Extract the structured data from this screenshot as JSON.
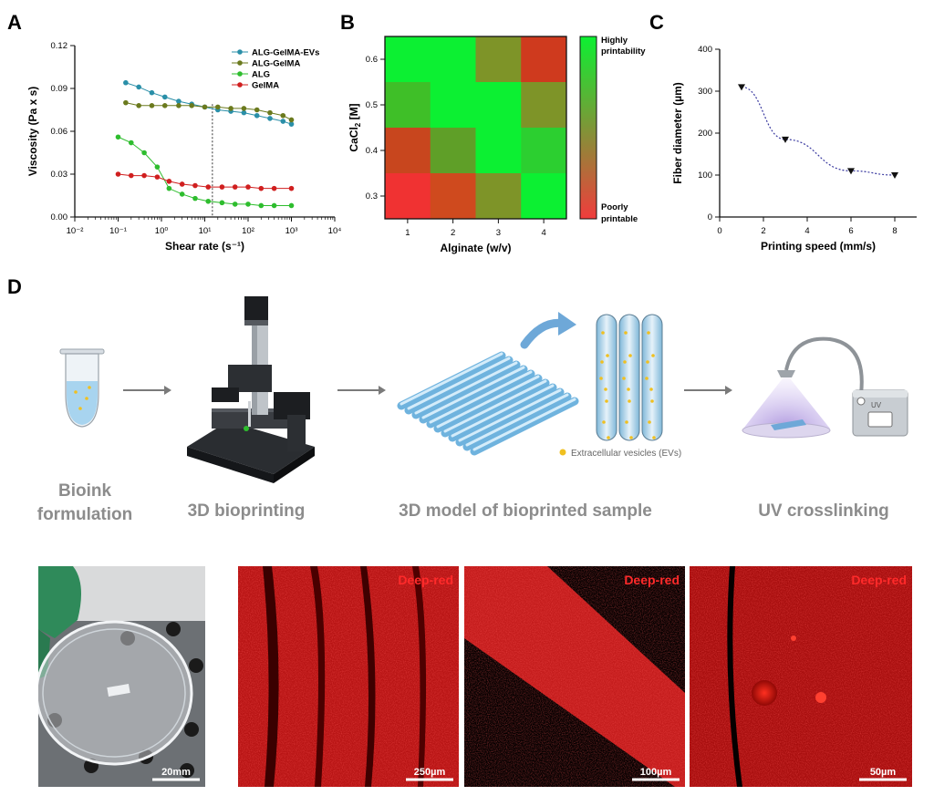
{
  "panels": {
    "a_letter": "A",
    "b_letter": "B",
    "c_letter": "C",
    "d_letter": "D"
  },
  "chart_data": [
    {
      "id": "A",
      "type": "line",
      "xscale": "log",
      "xlabel": "Shear rate (s⁻¹)",
      "ylabel": "Viscosity (Pa x s)",
      "xlim": [
        0.01,
        10000
      ],
      "ylim": [
        0,
        0.12
      ],
      "xticks": [
        0.01,
        0.1,
        1,
        10,
        100,
        1000,
        10000
      ],
      "xtick_labels": [
        "10⁻²",
        "10⁻¹",
        "10⁰",
        "10¹",
        "10²",
        "10³",
        "10⁴"
      ],
      "yticks": [
        0,
        0.03,
        0.06,
        0.09,
        0.12
      ],
      "ytick_labels": [
        "0.00",
        "0.03",
        "0.06",
        "0.09",
        "0.12"
      ],
      "reference_line_x": 15,
      "legend_position": "top-right",
      "series": [
        {
          "name": "ALG-GelMA-EVs",
          "color": "#2a8fa8",
          "marker": "circle",
          "x": [
            0.15,
            0.3,
            0.6,
            1.2,
            2.5,
            5,
            10,
            20,
            40,
            80,
            160,
            320,
            640,
            1000
          ],
          "y": [
            0.094,
            0.091,
            0.087,
            0.084,
            0.081,
            0.079,
            0.077,
            0.075,
            0.074,
            0.073,
            0.071,
            0.069,
            0.067,
            0.065
          ]
        },
        {
          "name": "ALG-GelMA",
          "color": "#6b7a1e",
          "marker": "circle",
          "x": [
            0.15,
            0.3,
            0.6,
            1.2,
            2.5,
            5,
            10,
            20,
            40,
            80,
            160,
            320,
            640,
            1000
          ],
          "y": [
            0.08,
            0.078,
            0.078,
            0.078,
            0.078,
            0.078,
            0.077,
            0.077,
            0.076,
            0.076,
            0.075,
            0.073,
            0.071,
            0.068
          ]
        },
        {
          "name": "ALG",
          "color": "#2ebd2e",
          "marker": "circle",
          "x": [
            0.1,
            0.2,
            0.4,
            0.8,
            1.5,
            3,
            6,
            12,
            25,
            50,
            100,
            200,
            400,
            1000
          ],
          "y": [
            0.056,
            0.052,
            0.045,
            0.035,
            0.02,
            0.016,
            0.013,
            0.011,
            0.01,
            0.009,
            0.009,
            0.008,
            0.008,
            0.008
          ]
        },
        {
          "name": "GelMA",
          "color": "#d01f1f",
          "marker": "circle",
          "x": [
            0.1,
            0.2,
            0.4,
            0.8,
            1.5,
            3,
            6,
            12,
            25,
            50,
            100,
            200,
            400,
            1000
          ],
          "y": [
            0.03,
            0.029,
            0.029,
            0.028,
            0.025,
            0.023,
            0.022,
            0.021,
            0.021,
            0.021,
            0.021,
            0.02,
            0.02,
            0.02
          ]
        }
      ]
    },
    {
      "id": "B",
      "type": "heatmap",
      "xlabel": "Alginate (w/v)",
      "ylabel_main": "CaCl",
      "ylabel_sub": "2",
      "ylabel_tail": " [M]",
      "x_categories": [
        "1",
        "2",
        "3",
        "4"
      ],
      "y_categories": [
        "0.6",
        "0.5",
        "0.4",
        "0.3"
      ],
      "colors": [
        [
          "#0cf032",
          "#0cf032",
          "#7e9428",
          "#cf3a1e"
        ],
        [
          "#3fbf28",
          "#0cf032",
          "#0cf032",
          "#7e9428"
        ],
        [
          "#c8461e",
          "#5f9f28",
          "#0cf032",
          "#2ccf30"
        ],
        [
          "#f03232",
          "#cf4a1e",
          "#7e9428",
          "#0cf032"
        ]
      ],
      "colorbar_top_label": [
        "Highly",
        "printability"
      ],
      "colorbar_bottom_label": [
        "Poorly",
        "printable"
      ],
      "colorbar_colors": [
        "#0cf032",
        "#f03c3c"
      ]
    },
    {
      "id": "C",
      "type": "scatter",
      "xlabel": "Printing speed (mm/s)",
      "ylabel": "Fiber diameter (µm)",
      "xlim": [
        0,
        9
      ],
      "ylim": [
        0,
        400
      ],
      "xticks": [
        0,
        2,
        4,
        6,
        8
      ],
      "yticks": [
        0,
        100,
        200,
        300,
        400
      ],
      "x": [
        1,
        3,
        6,
        8
      ],
      "y": [
        310,
        185,
        110,
        100
      ],
      "marker": "triangle-down",
      "fit_line": "dotted",
      "fit_color": "#3a3aa0"
    }
  ],
  "workflow": {
    "steps": [
      [
        "Bioink",
        "formulation"
      ],
      [
        "3D bioprinting"
      ],
      [
        "3D model of bioprinted sample"
      ],
      [
        "UV crosslinking"
      ]
    ],
    "ev_legend": "Extracellular vesicles (EVs)",
    "uv_badge": "UV"
  },
  "micrographs": [
    {
      "label": "",
      "scale": "20mm"
    },
    {
      "label": "Deep-red",
      "scale": "250µm"
    },
    {
      "label": "Deep-red",
      "scale": "100µm"
    },
    {
      "label": "Deep-red",
      "scale": "50µm"
    }
  ]
}
